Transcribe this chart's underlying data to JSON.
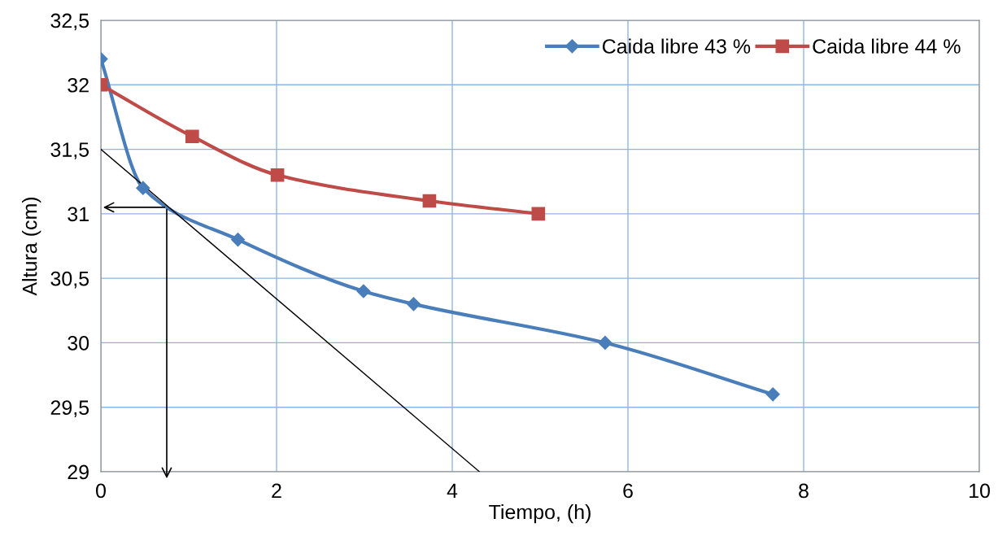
{
  "chart_data": {
    "type": "line",
    "xlabel": "Tiempo, (h)",
    "ylabel": "Altura (cm)",
    "xlim": [
      0,
      10
    ],
    "xticks": [
      0,
      2,
      4,
      6,
      8,
      10
    ],
    "ylim": [
      29,
      32.5
    ],
    "yticks": [
      29,
      {
        "value": 29.5,
        "label": "29,5"
      },
      30,
      {
        "value": 30.5,
        "label": "30,5"
      },
      31,
      {
        "value": 31.5,
        "label": "31,5"
      },
      32,
      {
        "value": 32.5,
        "label": "32,5"
      }
    ],
    "grid": true,
    "legend": "top right",
    "line_style": "solid",
    "series": [
      {
        "name": "Caida libre 43 %",
        "color": "#4a7ebb",
        "marker": "diamond",
        "x": [
          0,
          0.48,
          1.56,
          2.99,
          3.56,
          5.74,
          7.65
        ],
        "values": [
          32.2,
          31.2,
          30.8,
          30.4,
          30.3,
          30.0,
          29.6
        ]
      },
      {
        "name": "Caida libre 44 %",
        "color": "#be4b48",
        "marker": "square",
        "x": [
          0,
          1.04,
          2.01,
          3.74,
          4.98
        ],
        "values": [
          32.0,
          31.6,
          31.3,
          31.1,
          31.0
        ]
      },
      {
        "type": "line",
        "color": "#000000",
        "marker": "none",
        "x": [
          0,
          4.31
        ],
        "values": [
          31.5,
          29.0
        ]
      }
    ]
  }
}
